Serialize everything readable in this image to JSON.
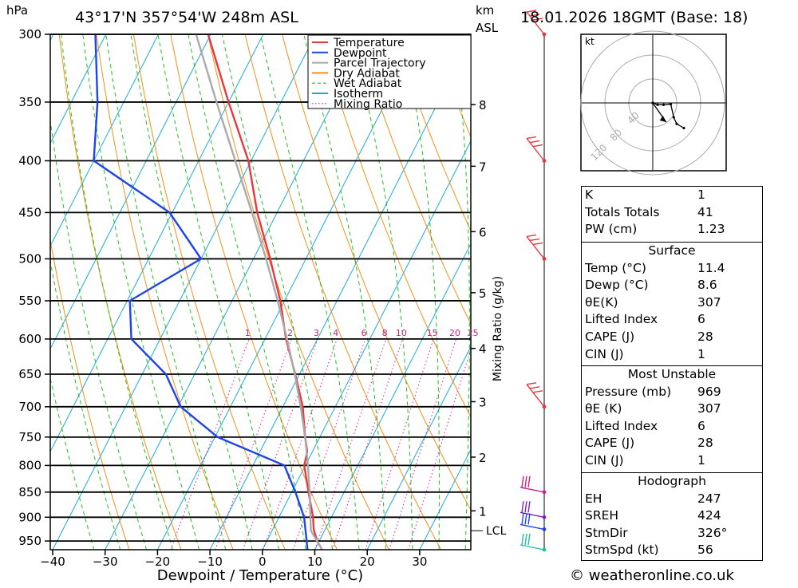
{
  "header": {
    "location": "43°17'N  357°54'W  248m  ASL",
    "datetime": "18.01.2026  18GMT  (Base: 18)",
    "hpa_label": "hPa",
    "km_label": "km",
    "asl_label": "ASL"
  },
  "footer": {
    "copyright": "© weatheronline.co.uk"
  },
  "legend": {
    "items": [
      {
        "label": "Temperature",
        "color": "#e8383d",
        "style": "solid"
      },
      {
        "label": "Dewpoint",
        "color": "#1f44e8",
        "style": "solid"
      },
      {
        "label": "Parcel Trajectory",
        "color": "#aaaaaa",
        "style": "solid"
      },
      {
        "label": "Dry Adiabat",
        "color": "#f0901a",
        "style": "solid"
      },
      {
        "label": "Wet Adiabat",
        "color": "#22c022",
        "style": "dashed"
      },
      {
        "label": "Isotherm",
        "color": "#1aaad8",
        "style": "solid"
      },
      {
        "label": "Mixing Ratio",
        "color": "#e0209a",
        "style": "dotted"
      }
    ]
  },
  "chart_data": {
    "type": "line",
    "subtype": "skew-T log-P diagram",
    "xlabel": "Dewpoint / Temperature (°C)",
    "ylabel": "hPa",
    "x_ticks": [
      -40,
      -30,
      -20,
      -10,
      0,
      10,
      20,
      30
    ],
    "x_tick_labels": [
      "−40",
      "−30",
      "−20",
      "−10",
      "0",
      "10",
      "20",
      "30"
    ],
    "y_ticks": [
      300,
      350,
      400,
      450,
      500,
      550,
      600,
      650,
      700,
      750,
      800,
      850,
      900,
      950
    ],
    "y_scale": "log",
    "km_ticks": [
      {
        "km": "8",
        "p": 352
      },
      {
        "km": "7",
        "p": 405
      },
      {
        "km": "6",
        "p": 470
      },
      {
        "km": "5",
        "p": 540
      },
      {
        "km": "4",
        "p": 613
      },
      {
        "km": "3",
        "p": 692
      },
      {
        "km": "2",
        "p": 785
      },
      {
        "km": "1",
        "p": 887
      }
    ],
    "lcl": {
      "label": "LCL",
      "p": 928
    },
    "mixing_ratio_axis_label": "Mixing Ratio (g/kg)",
    "mixing_ratio_labels": [
      "1",
      "2",
      "3",
      "4",
      "6",
      "8",
      "10",
      "15",
      "20",
      "25"
    ],
    "mixing_ratio_values": [
      1,
      2,
      3,
      4,
      6,
      8,
      10,
      15,
      20,
      25
    ],
    "series": [
      {
        "name": "Temperature",
        "color": "#e8383d",
        "points": [
          {
            "p": 969,
            "t": 11.4
          },
          {
            "p": 950,
            "t": 9.6
          },
          {
            "p": 925,
            "t": 7.8
          },
          {
            "p": 900,
            "t": 6.5
          },
          {
            "p": 850,
            "t": 3.2
          },
          {
            "p": 800,
            "t": -0.2
          },
          {
            "p": 775,
            "t": -1.0
          },
          {
            "p": 750,
            "t": -2.8
          },
          {
            "p": 700,
            "t": -6.2
          },
          {
            "p": 650,
            "t": -10.8
          },
          {
            "p": 600,
            "t": -16.0
          },
          {
            "p": 550,
            "t": -20.8
          },
          {
            "p": 500,
            "t": -26.8
          },
          {
            "p": 450,
            "t": -33.8
          },
          {
            "p": 400,
            "t": -40.5
          },
          {
            "p": 350,
            "t": -50.0
          },
          {
            "p": 300,
            "t": -60.5
          }
        ]
      },
      {
        "name": "Dewpoint",
        "color": "#1f44e8",
        "points": [
          {
            "p": 969,
            "t": 8.6
          },
          {
            "p": 950,
            "t": 7.6
          },
          {
            "p": 900,
            "t": 4.8
          },
          {
            "p": 850,
            "t": 0.7
          },
          {
            "p": 800,
            "t": -4.0
          },
          {
            "p": 750,
            "t": -19.5
          },
          {
            "p": 700,
            "t": -29.5
          },
          {
            "p": 650,
            "t": -35.5
          },
          {
            "p": 600,
            "t": -45.5
          },
          {
            "p": 550,
            "t": -49.5
          },
          {
            "p": 500,
            "t": -40.0
          },
          {
            "p": 450,
            "t": -50.5
          },
          {
            "p": 400,
            "t": -70.0
          },
          {
            "p": 350,
            "t": -75.0
          },
          {
            "p": 300,
            "t": -82.0
          }
        ]
      },
      {
        "name": "Parcel Trajectory",
        "color": "#aaaaaa",
        "points": [
          {
            "p": 969,
            "t": 11.4
          },
          {
            "p": 928,
            "t": 7.4
          },
          {
            "p": 900,
            "t": 6.0
          },
          {
            "p": 850,
            "t": 3.4
          },
          {
            "p": 800,
            "t": 0.5
          },
          {
            "p": 750,
            "t": -2.8
          },
          {
            "p": 700,
            "t": -6.6
          },
          {
            "p": 650,
            "t": -10.9
          },
          {
            "p": 600,
            "t": -15.8
          },
          {
            "p": 550,
            "t": -21.3
          },
          {
            "p": 500,
            "t": -27.6
          },
          {
            "p": 450,
            "t": -34.8
          },
          {
            "p": 400,
            "t": -43.0
          },
          {
            "p": 350,
            "t": -52.3
          },
          {
            "p": 300,
            "t": -62.8
          }
        ]
      }
    ],
    "wind_barbs": [
      {
        "p": 300,
        "color": "#e8383d",
        "kind": "flag-red"
      },
      {
        "p": 400,
        "color": "#e8383d",
        "kind": "flag-red"
      },
      {
        "p": 500,
        "color": "#e8383d",
        "kind": "flag-red"
      },
      {
        "p": 700,
        "color": "#e8383d",
        "kind": "flag-red"
      },
      {
        "p": 850,
        "color": "#cc2080",
        "kind": "barb-magenta"
      },
      {
        "p": 900,
        "color": "#8020c0",
        "kind": "barb-purple"
      },
      {
        "p": 925,
        "color": "#1f44e8",
        "kind": "barb-blue"
      },
      {
        "p": 969,
        "color": "#20c0a0",
        "kind": "barb-teal"
      }
    ],
    "hodograph": {
      "unit_label": "kt",
      "ring_labels": [
        "40",
        "80",
        "120"
      ],
      "points": [
        [
          0,
          0
        ],
        [
          8,
          -3
        ],
        [
          18,
          -3
        ],
        [
          30,
          -2
        ],
        [
          35,
          -24
        ],
        [
          40,
          -35
        ],
        [
          52,
          -42
        ]
      ],
      "storm_motion_arrow": [
        [
          0,
          0
        ],
        [
          14,
          -20
        ]
      ]
    }
  },
  "indices": {
    "k": {
      "label": "K",
      "value": "1"
    },
    "tt": {
      "label": "Totals Totals",
      "value": "41"
    },
    "pw": {
      "label": "PW (cm)",
      "value": "1.23"
    }
  },
  "surface": {
    "title": "Surface",
    "rows": [
      {
        "label": "Temp (°C)",
        "value": "11.4"
      },
      {
        "label": "Dewp (°C)",
        "value": "8.6"
      },
      {
        "label": "θE(K)",
        "value": "307"
      },
      {
        "label": "Lifted Index",
        "value": "6"
      },
      {
        "label": "CAPE (J)",
        "value": "28"
      },
      {
        "label": "CIN (J)",
        "value": "1"
      }
    ]
  },
  "most_unstable": {
    "title": "Most Unstable",
    "rows": [
      {
        "label": "Pressure (mb)",
        "value": "969"
      },
      {
        "label": "θE (K)",
        "value": "307"
      },
      {
        "label": "Lifted Index",
        "value": "6"
      },
      {
        "label": "CAPE (J)",
        "value": "28"
      },
      {
        "label": "CIN (J)",
        "value": "1"
      }
    ]
  },
  "hodograph_table": {
    "title": "Hodograph",
    "rows": [
      {
        "label": "EH",
        "value": "247"
      },
      {
        "label": "SREH",
        "value": "424"
      },
      {
        "label": "StmDir",
        "value": "326°"
      },
      {
        "label": "StmSpd (kt)",
        "value": "56"
      }
    ]
  }
}
